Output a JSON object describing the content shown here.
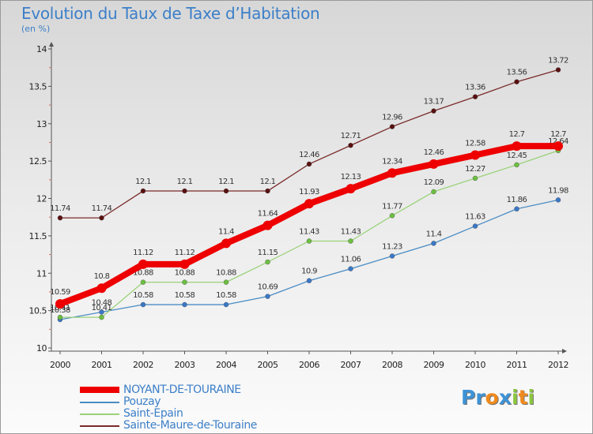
{
  "title": "Evolution du Taux de Taxe d’Habitation",
  "unit": "(en %)",
  "logo": [
    {
      "char": "P",
      "color": "#3d92d6"
    },
    {
      "char": "r",
      "color": "#3d92d6"
    },
    {
      "char": "o",
      "color": "#f08a1c"
    },
    {
      "char": "x",
      "color": "#3d92d6"
    },
    {
      "char": "i",
      "color": "#8cc63f"
    },
    {
      "char": "t",
      "color": "#f08a1c"
    },
    {
      "char": "i",
      "color": "#8cc63f"
    }
  ],
  "chart_data": {
    "type": "line",
    "x": [
      "2000",
      "2001",
      "2002",
      "2003",
      "2004",
      "2005",
      "2006",
      "2007",
      "2008",
      "2009",
      "2010",
      "2011",
      "2012"
    ],
    "ylim": [
      10,
      14
    ],
    "yticks": [
      "10",
      "10.5",
      "11",
      "11.5",
      "12",
      "12.5",
      "13",
      "13.5",
      "14"
    ],
    "grid": false,
    "legend_position": "bottom-left",
    "series": [
      {
        "name": "Sainte-Maure-de-Touraine",
        "color": "#7a2a2a",
        "marker": "#5a1010",
        "values": [
          11.74,
          11.74,
          12.1,
          12.1,
          12.1,
          12.1,
          12.46,
          12.71,
          12.96,
          13.17,
          13.36,
          13.56,
          13.72
        ],
        "labels": [
          "11.74",
          "11.74",
          "12.1",
          "12.1",
          "12.1",
          "12.1",
          "12.46",
          "12.71",
          "12.96",
          "13.17",
          "13.36",
          "13.56",
          "13.72"
        ]
      },
      {
        "name": "Pouzay",
        "color": "#4a8cc4",
        "marker": "#3a78c8",
        "values": [
          10.38,
          10.48,
          10.58,
          10.58,
          10.58,
          10.69,
          10.9,
          11.06,
          11.23,
          11.4,
          11.63,
          11.86,
          11.98
        ],
        "labels": [
          "10.38",
          "10.48",
          "10.58",
          "10.58",
          "10.58",
          "10.69",
          "10.9",
          "11.06",
          "11.23",
          "11.4",
          "11.63",
          "11.86",
          "11.98"
        ]
      },
      {
        "name": "Saint-Epain",
        "color": "#9bd27a",
        "marker": "#6cc040",
        "values": [
          10.41,
          10.41,
          10.88,
          10.88,
          10.88,
          11.15,
          11.43,
          11.43,
          11.77,
          12.09,
          12.27,
          12.45,
          12.64
        ],
        "labels": [
          "10.41",
          "10.41",
          "10.88",
          "10.88",
          "10.88",
          "11.15",
          "11.43",
          "11.43",
          "11.77",
          "12.09",
          "12.27",
          "12.45",
          "12.64"
        ]
      },
      {
        "name": "NOYANT-DE-TOURAINE",
        "color": "#ee0000",
        "marker": "#ee0000",
        "values": [
          10.59,
          10.8,
          11.12,
          11.12,
          11.4,
          11.64,
          11.93,
          12.13,
          12.34,
          12.46,
          12.58,
          12.7,
          12.7
        ],
        "labels": [
          "10.59",
          "10.8",
          "11.12",
          "11.12",
          "11.4",
          "11.64",
          "11.93",
          "12.13",
          "12.34",
          "12.46",
          "12.58",
          "12.7",
          "12.7"
        ]
      }
    ],
    "legend": [
      "NOYANT-DE-TOURAINE",
      "Pouzay",
      "Saint-Epain",
      "Sainte-Maure-de-Touraine"
    ]
  }
}
